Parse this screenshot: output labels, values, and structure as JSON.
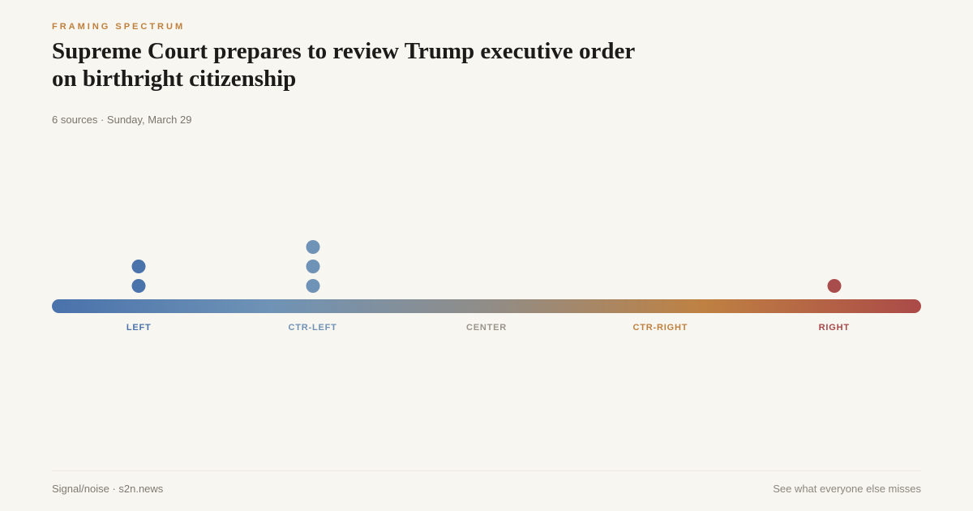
{
  "eyebrow": "FRAMING SPECTRUM",
  "title_lines": [
    "Supreme Court prepares to review Trump executive order",
    "on birthright citizenship"
  ],
  "meta": "6 sources · Sunday, March 29",
  "chart_data": {
    "type": "scatter",
    "title": "Framing Spectrum",
    "description": "Dot plot of 6 news sources placed on a left-right political framing spectrum",
    "categories": [
      "LEFT",
      "CTR-LEFT",
      "CENTER",
      "CTR-RIGHT",
      "RIGHT"
    ],
    "category_positions_pct": [
      10,
      30,
      50,
      70,
      90
    ],
    "counts_per_category": [
      2,
      3,
      0,
      0,
      1
    ],
    "total_sources": 6,
    "columns": [
      {
        "category": "LEFT",
        "count": 2,
        "position_pct": 10,
        "dot_color": "#4a72ab"
      },
      {
        "category": "CTR-LEFT",
        "count": 3,
        "position_pct": 30,
        "dot_color": "#6f93b6"
      },
      {
        "category": "RIGHT",
        "count": 1,
        "position_pct": 90,
        "dot_color": "#a94c4c"
      }
    ],
    "labels": [
      {
        "text": "LEFT",
        "position_pct": 10,
        "color": "#4a72ab"
      },
      {
        "text": "CTR-LEFT",
        "position_pct": 30,
        "color": "#6f93b6"
      },
      {
        "text": "CENTER",
        "position_pct": 50,
        "color": "#9a948b"
      },
      {
        "text": "CTR-RIGHT",
        "position_pct": 70,
        "color": "#c08140"
      },
      {
        "text": "RIGHT",
        "position_pct": 90,
        "color": "#a8484a"
      }
    ],
    "bar_gradient_stops": [
      "#4a72ab",
      "#6f93b6",
      "#908d88",
      "#bf8142",
      "#ab4a48"
    ],
    "legend_position": "below-axis",
    "grid": false
  },
  "colors": {
    "background": "#f8f6f0",
    "accent_orange": "#c0803d",
    "headline": "#1c1b1a"
  },
  "footer": {
    "left": "Signal/noise · s2n.news",
    "right": "See what everyone else misses"
  }
}
